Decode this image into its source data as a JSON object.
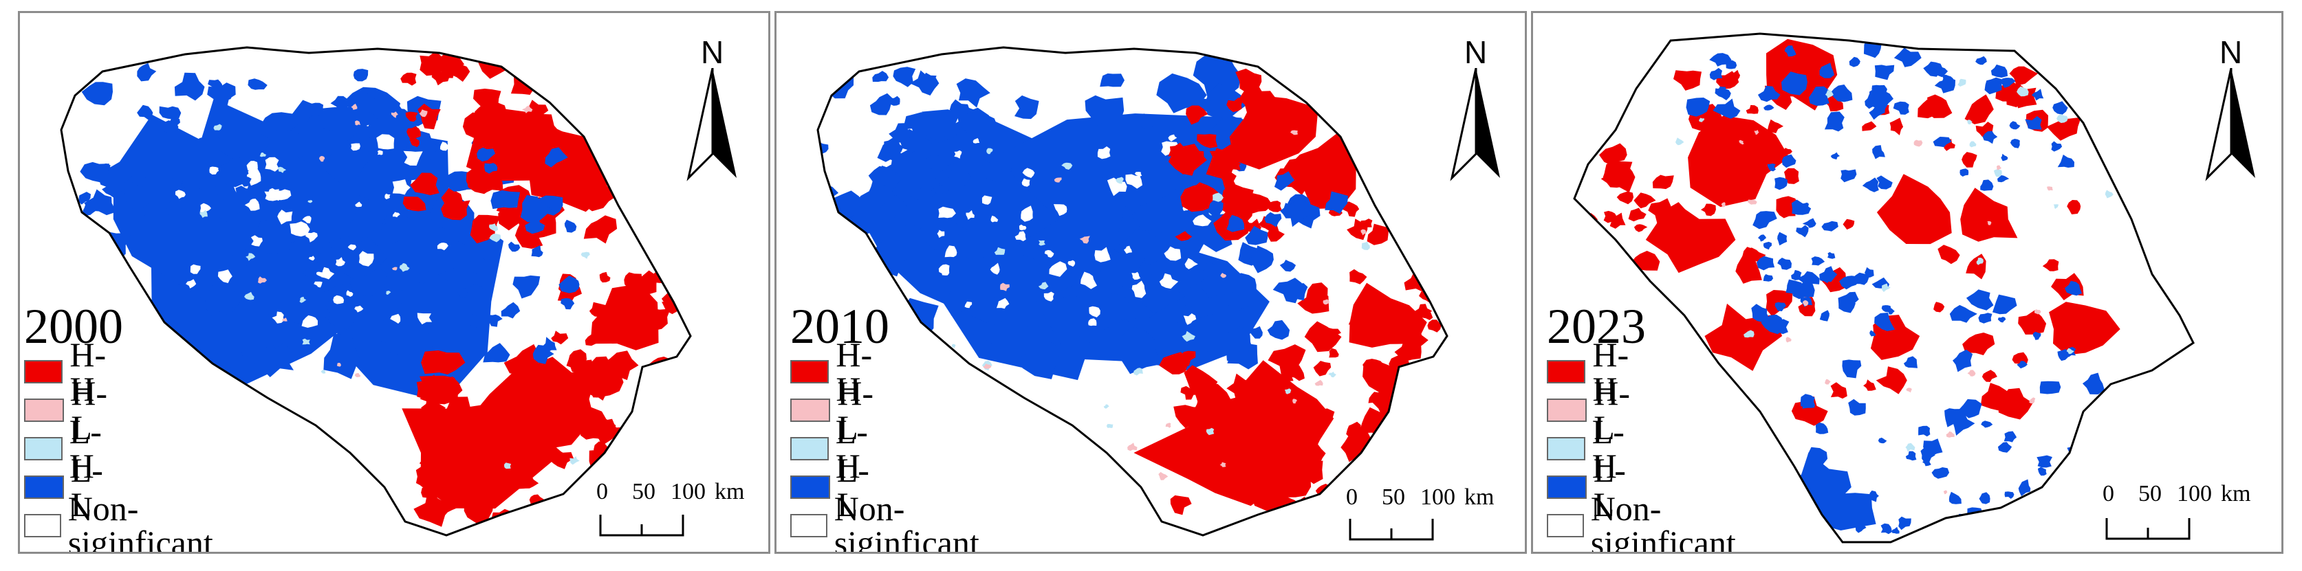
{
  "colors": {
    "HH": "#ee0000",
    "HL": "#f7bfc4",
    "LH": "#bde6f5",
    "LL": "#0a50e0",
    "NS": "#ffffff",
    "border": "#000000"
  },
  "legend": {
    "items": [
      {
        "key": "HH",
        "label": "H-H"
      },
      {
        "key": "HL",
        "label": "H-L"
      },
      {
        "key": "LH",
        "label": "L-H"
      },
      {
        "key": "LL",
        "label": "L-L"
      },
      {
        "key": "NS",
        "label": "Non-siginficant"
      }
    ]
  },
  "north_label": "N",
  "scale": {
    "label_0": "0",
    "label_50": "50",
    "label_100": "100",
    "unit": "km"
  },
  "panels": [
    {
      "year": "2000",
      "pattern": "early"
    },
    {
      "year": "2010",
      "pattern": "early"
    },
    {
      "year": "2023",
      "pattern": "late"
    }
  ]
}
